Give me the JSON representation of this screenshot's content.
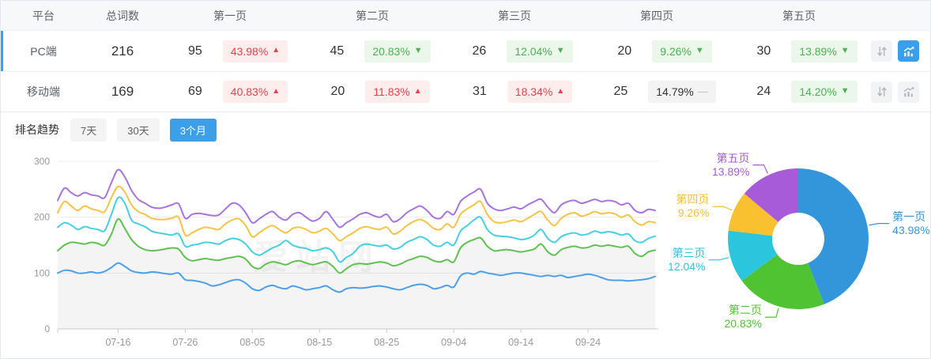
{
  "table": {
    "headers": [
      "平台",
      "总词数",
      "第一页",
      "第二页",
      "第三页",
      "第四页",
      "第五页"
    ],
    "rows": [
      {
        "platform": "PC端",
        "total": "216",
        "selected": true,
        "chart_active": true,
        "pages": [
          {
            "count": "95",
            "pct": "43.98%",
            "trend": "up"
          },
          {
            "count": "45",
            "pct": "20.83%",
            "trend": "down"
          },
          {
            "count": "26",
            "pct": "12.04%",
            "trend": "down"
          },
          {
            "count": "20",
            "pct": "9.26%",
            "trend": "down"
          },
          {
            "count": "30",
            "pct": "13.89%",
            "trend": "down"
          }
        ]
      },
      {
        "platform": "移动端",
        "total": "169",
        "selected": false,
        "chart_active": false,
        "pages": [
          {
            "count": "69",
            "pct": "40.83%",
            "trend": "up"
          },
          {
            "count": "20",
            "pct": "11.83%",
            "trend": "up"
          },
          {
            "count": "31",
            "pct": "18.34%",
            "trend": "up"
          },
          {
            "count": "25",
            "pct": "14.79%",
            "trend": "flat"
          },
          {
            "count": "24",
            "pct": "14.20%",
            "trend": "down"
          }
        ]
      }
    ]
  },
  "trend": {
    "title": "排名趋势",
    "tabs": [
      {
        "label": "7天",
        "active": false
      },
      {
        "label": "30天",
        "active": false
      },
      {
        "label": "3个月",
        "active": true
      }
    ]
  },
  "watermark": "爱站网",
  "colors": {
    "accent_blue": "#3a9fe8",
    "badge_up_text": "#e8414d",
    "badge_down_text": "#4db153",
    "line_series": [
      "#4c9fe8",
      "#5fc250",
      "#45d0e2",
      "#f6c344",
      "#a873dc"
    ],
    "pie_slices": [
      "#3396db",
      "#50c332",
      "#2bc6dd",
      "#f9c02f",
      "#a75bd8"
    ],
    "grid": "#ececec",
    "axis": "#cccccc",
    "axis_text": "#999999"
  },
  "chart_data": [
    {
      "type": "line",
      "title": "排名趋势 (3个月, PC端)",
      "note": "5 smooth lines, cumulative keyword counts pages 1-5; light gray area fill under the 2nd (green) line; y gridlines every 100",
      "ylim": [
        0,
        300
      ],
      "yticks": [
        0,
        100,
        200,
        300
      ],
      "x_tick_indices": [
        9,
        19,
        29,
        39,
        49,
        59,
        69,
        79
      ],
      "x_tick_labels": [
        "07-16",
        "07-26",
        "08-05",
        "08-15",
        "08-25",
        "09-04",
        "09-14",
        "09-24"
      ],
      "series": [
        {
          "name": "第一页",
          "color": "#4c9fe8",
          "fill": false,
          "values": [
            100,
            105,
            104,
            100,
            100,
            102,
            100,
            103,
            110,
            118,
            112,
            104,
            101,
            100,
            102,
            101,
            99,
            98,
            100,
            88,
            87,
            85,
            82,
            77,
            79,
            83,
            87,
            88,
            82,
            72,
            69,
            75,
            78,
            74,
            72,
            77,
            74,
            70,
            72,
            74,
            77,
            70,
            66,
            72,
            74,
            73,
            74,
            76,
            77,
            75,
            72,
            70,
            74,
            78,
            80,
            78,
            72,
            74,
            78,
            75,
            95,
            100,
            98,
            103,
            100,
            98,
            96,
            98,
            100,
            100,
            98,
            96,
            94,
            96,
            94,
            96,
            92,
            94,
            96,
            98,
            96,
            92,
            88,
            87,
            87,
            86,
            87,
            88,
            90,
            94
          ]
        },
        {
          "name": "第二页(累计)",
          "color": "#5fc250",
          "fill": true,
          "values": [
            140,
            150,
            155,
            154,
            152,
            155,
            153,
            150,
            170,
            197,
            180,
            160,
            148,
            142,
            140,
            141,
            143,
            145,
            143,
            128,
            122,
            124,
            126,
            124,
            123,
            126,
            128,
            130,
            125,
            112,
            108,
            116,
            120,
            118,
            115,
            120,
            122,
            118,
            115,
            118,
            120,
            112,
            100,
            108,
            115,
            117,
            116,
            118,
            120,
            118,
            113,
            116,
            122,
            126,
            130,
            128,
            122,
            120,
            124,
            120,
            145,
            155,
            160,
            163,
            148,
            140,
            141,
            142,
            140,
            138,
            140,
            143,
            152,
            138,
            132,
            142,
            146,
            148,
            145,
            146,
            150,
            148,
            150,
            148,
            146,
            148,
            135,
            130,
            138,
            141
          ]
        },
        {
          "name": "第三页(累计)",
          "color": "#45d0e2",
          "fill": false,
          "values": [
            182,
            190,
            186,
            178,
            183,
            180,
            178,
            176,
            205,
            235,
            225,
            195,
            188,
            183,
            175,
            172,
            170,
            168,
            170,
            148,
            150,
            152,
            155,
            154,
            152,
            158,
            162,
            160,
            152,
            138,
            132,
            138,
            145,
            150,
            158,
            150,
            146,
            144,
            140,
            142,
            145,
            138,
            120,
            128,
            135,
            148,
            152,
            150,
            148,
            150,
            143,
            146,
            155,
            160,
            165,
            160,
            150,
            148,
            155,
            150,
            175,
            185,
            195,
            200,
            178,
            168,
            166,
            165,
            163,
            160,
            162,
            168,
            178,
            162,
            155,
            165,
            170,
            172,
            168,
            170,
            175,
            172,
            174,
            172,
            168,
            170,
            158,
            155,
            162,
            166
          ]
        },
        {
          "name": "第四页(累计)",
          "color": "#f6c344",
          "fill": false,
          "values": [
            208,
            228,
            220,
            212,
            220,
            215,
            212,
            210,
            235,
            255,
            245,
            222,
            210,
            205,
            198,
            196,
            196,
            198,
            200,
            168,
            172,
            178,
            182,
            180,
            178,
            188,
            195,
            197,
            185,
            165,
            172,
            180,
            185,
            178,
            172,
            180,
            182,
            178,
            172,
            175,
            180,
            170,
            158,
            165,
            172,
            180,
            183,
            180,
            178,
            182,
            170,
            175,
            185,
            192,
            196,
            190,
            180,
            178,
            188,
            182,
            205,
            215,
            222,
            228,
            205,
            192,
            190,
            192,
            195,
            192,
            198,
            205,
            210,
            195,
            185,
            198,
            205,
            208,
            202,
            205,
            210,
            206,
            208,
            206,
            200,
            204,
            192,
            186,
            192,
            190
          ]
        },
        {
          "name": "第五页(累计)",
          "color": "#a873dc",
          "fill": false,
          "values": [
            230,
            252,
            244,
            238,
            244,
            240,
            238,
            235,
            262,
            285,
            272,
            248,
            232,
            225,
            218,
            216,
            218,
            222,
            224,
            198,
            205,
            207,
            205,
            203,
            204,
            215,
            225,
            222,
            208,
            190,
            197,
            205,
            210,
            200,
            195,
            205,
            208,
            200,
            193,
            198,
            210,
            196,
            182,
            190,
            197,
            205,
            208,
            203,
            200,
            205,
            192,
            197,
            208,
            215,
            220,
            212,
            200,
            198,
            210,
            205,
            228,
            238,
            245,
            250,
            225,
            215,
            212,
            215,
            218,
            215,
            222,
            228,
            232,
            218,
            208,
            222,
            228,
            230,
            225,
            228,
            232,
            228,
            230,
            228,
            222,
            225,
            212,
            208,
            214,
            212
          ]
        }
      ]
    },
    {
      "type": "pie",
      "title": "PC端 页面占比",
      "donut": true,
      "start_angle_deg": 0,
      "direction": "clockwise",
      "labels": [
        "第一页",
        "第二页",
        "第三页",
        "第四页",
        "第五页"
      ],
      "values": [
        43.98,
        20.83,
        12.04,
        9.26,
        13.89
      ],
      "display_pcts": [
        "43.98%",
        "20.83%",
        "12.04%",
        "9.26%",
        "13.89%"
      ],
      "colors": [
        "#3396db",
        "#50c332",
        "#2bc6dd",
        "#f9c02f",
        "#a75bd8"
      ]
    }
  ]
}
